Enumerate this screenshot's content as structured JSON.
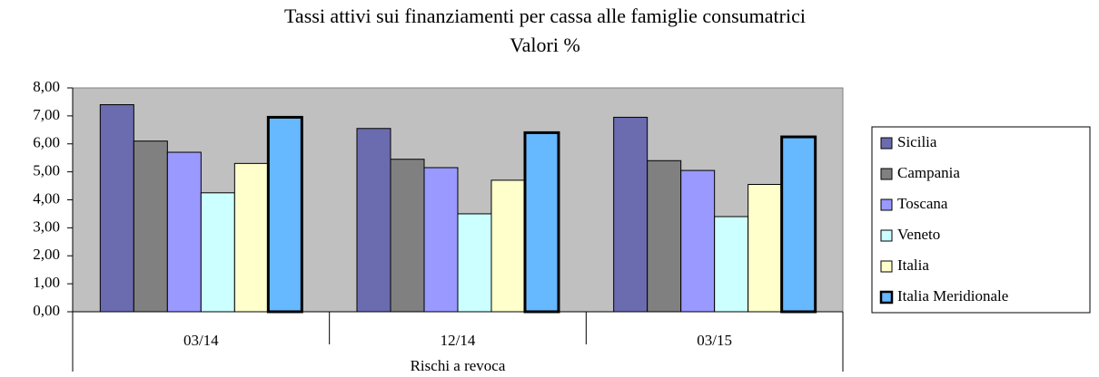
{
  "chart_data": {
    "type": "bar",
    "title": "Tassi attivi sui finanziamenti per cassa alle famiglie consumatrici",
    "subtitle": "Valori %",
    "x_label": "Rischi a revoca",
    "categories": [
      "03/14",
      "12/14",
      "03/15"
    ],
    "series": [
      {
        "name": "Sicilia",
        "color": "#6b6bb0",
        "values": [
          7.4,
          6.55,
          6.95
        ]
      },
      {
        "name": "Campania",
        "color": "#808080",
        "values": [
          6.1,
          5.45,
          5.4
        ]
      },
      {
        "name": "Toscana",
        "color": "#9999ff",
        "values": [
          5.7,
          5.15,
          5.05
        ]
      },
      {
        "name": "Veneto",
        "color": "#ccffff",
        "values": [
          4.25,
          3.5,
          3.4
        ]
      },
      {
        "name": "Italia",
        "color": "#ffffcc",
        "values": [
          5.3,
          4.7,
          4.55
        ]
      },
      {
        "name": "Italia Meridionale",
        "color": "#66b8ff",
        "values": [
          6.95,
          6.4,
          6.25
        ]
      }
    ],
    "ylim": [
      0,
      8
    ],
    "yticks": [
      {
        "value": 0,
        "label": "0,00"
      },
      {
        "value": 1,
        "label": "1,00"
      },
      {
        "value": 2,
        "label": "2,00"
      },
      {
        "value": 3,
        "label": "3,00"
      },
      {
        "value": 4,
        "label": "4,00"
      },
      {
        "value": 5,
        "label": "5,00"
      },
      {
        "value": 6,
        "label": "6,00"
      },
      {
        "value": 7,
        "label": "7,00"
      },
      {
        "value": 8,
        "label": "8,00"
      }
    ],
    "legend": "right"
  }
}
